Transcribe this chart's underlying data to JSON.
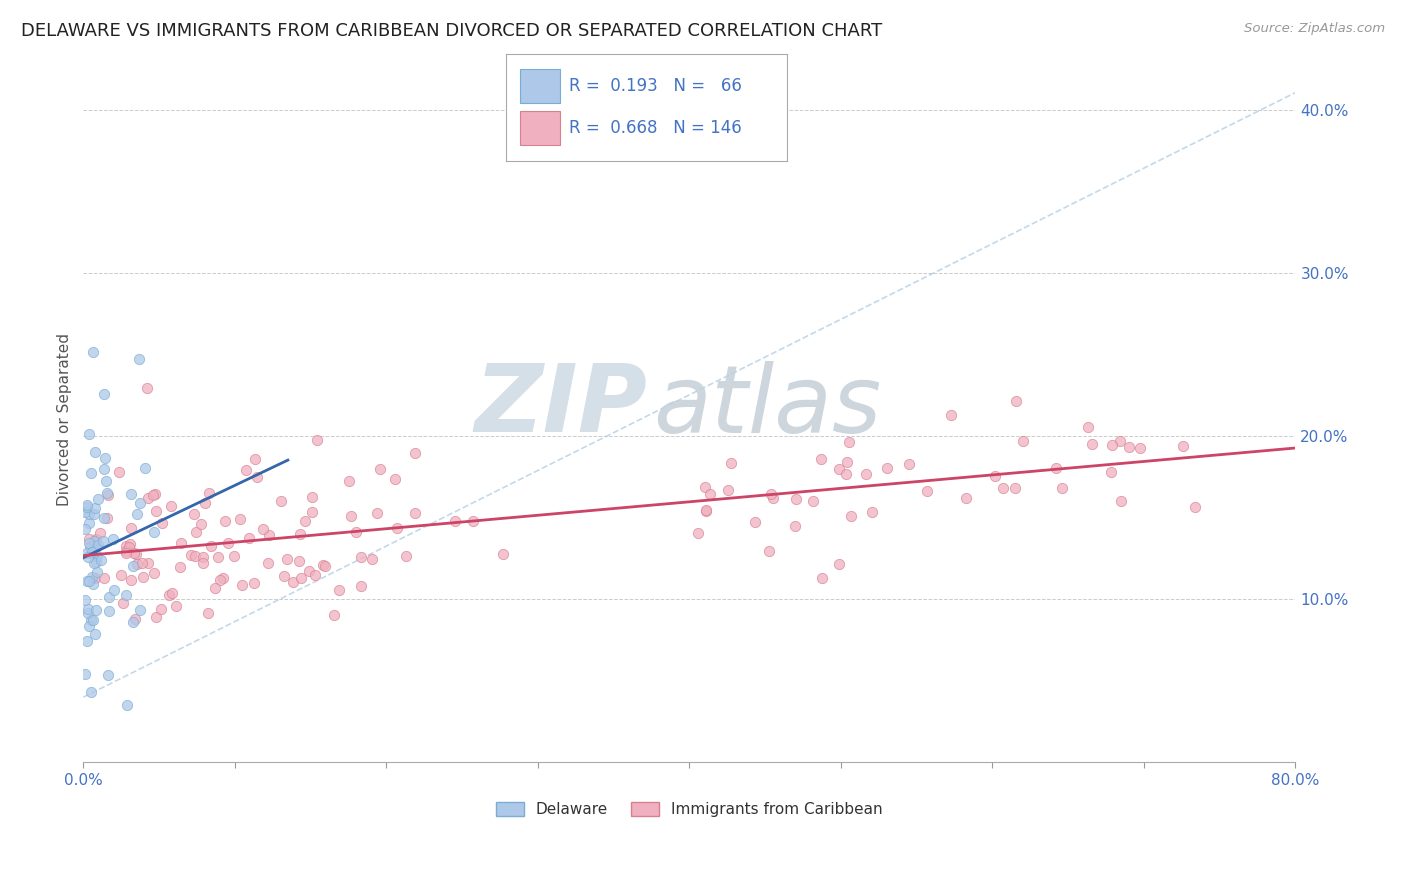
{
  "title": "DELAWARE VS IMMIGRANTS FROM CARIBBEAN DIVORCED OR SEPARATED CORRELATION CHART",
  "source": "Source: ZipAtlas.com",
  "ylabel": "Divorced or Separated",
  "xlim": [
    0.0,
    0.8
  ],
  "ylim": [
    0.0,
    0.42
  ],
  "xticks": [
    0.0,
    0.1,
    0.2,
    0.3,
    0.4,
    0.5,
    0.6,
    0.7,
    0.8
  ],
  "yticks_right": [
    0.1,
    0.2,
    0.3,
    0.4
  ],
  "ytick_labels_right": [
    "10.0%",
    "20.0%",
    "30.0%",
    "40.0%"
  ],
  "series1_name": "Delaware",
  "series1_color": "#adc8e8",
  "series1_edge_color": "#7aadd4",
  "series1_R": 0.193,
  "series1_N": 66,
  "series2_name": "Immigrants from Caribbean",
  "series2_color": "#f0b0c0",
  "series2_edge_color": "#d88090",
  "series2_R": 0.668,
  "series2_N": 146,
  "trendline1_color": "#3366aa",
  "trendline2_color": "#cc4466",
  "watermark_zip": "ZIP",
  "watermark_atlas": "atlas",
  "background_color": "#ffffff",
  "title_fontsize": 13,
  "seed": 42
}
